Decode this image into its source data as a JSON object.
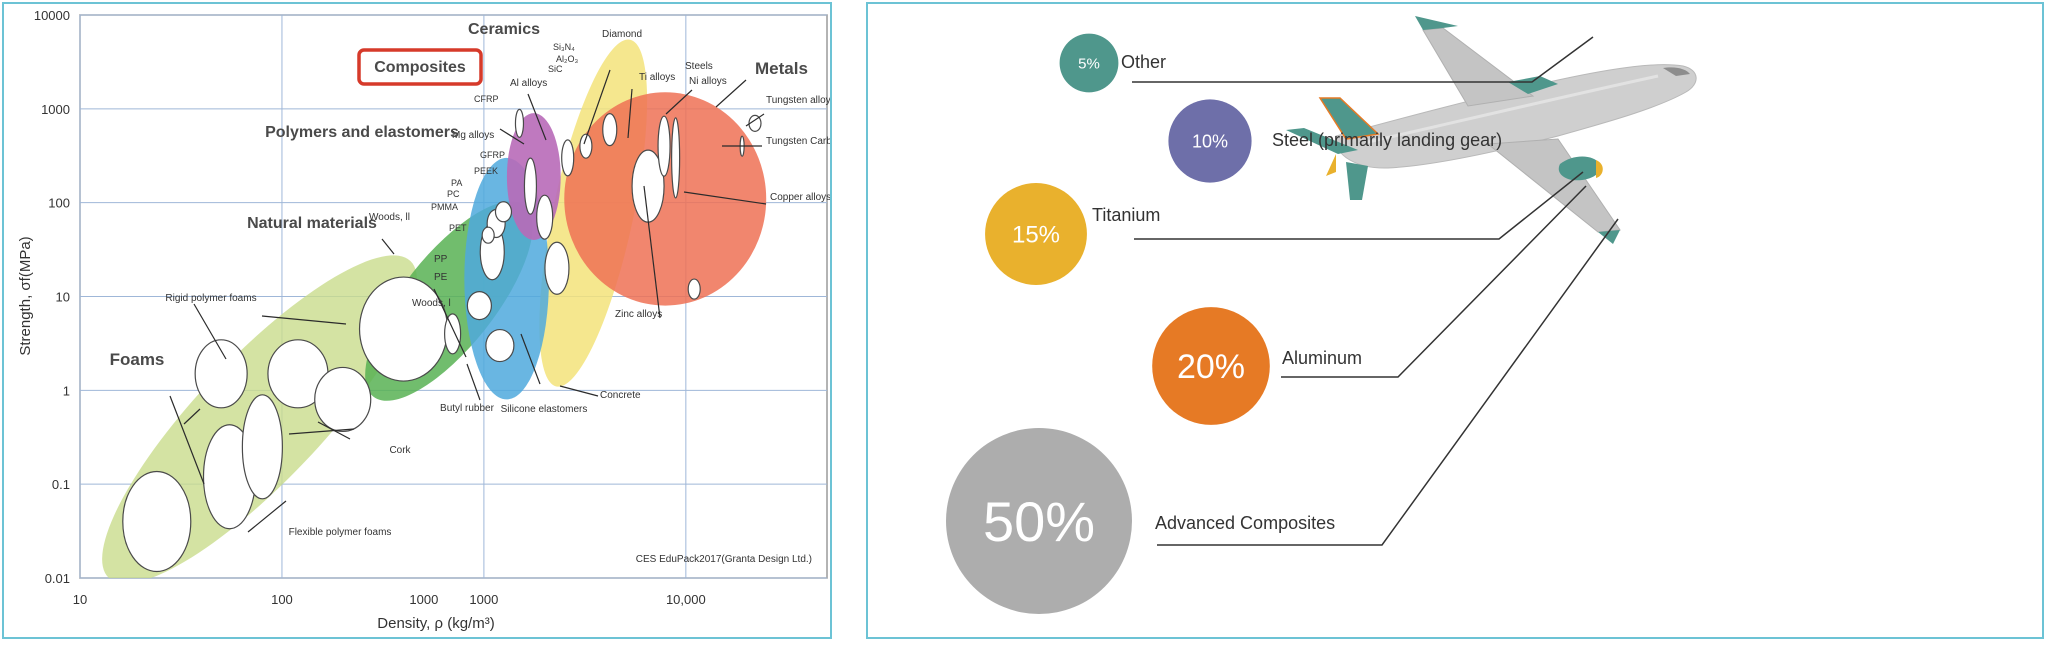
{
  "chart_data": [
    {
      "type": "scatter",
      "subtype": "material property chart (Ashby bubble chart)",
      "xlabel": "Density, ρ (kg/m³)",
      "ylabel": "Strength, σf(MPa)",
      "x_scale": "log",
      "y_scale": "log",
      "xlim": [
        10,
        50000
      ],
      "ylim": [
        0.01,
        10000
      ],
      "x_ticks": [
        "10",
        "100",
        "1000",
        "1000",
        "10,000"
      ],
      "y_ticks": [
        "10000",
        "1000",
        "100",
        "10",
        "1",
        "0.1",
        "0.01"
      ],
      "grid": true,
      "source_note": "CES EduPack2017(Granta Design Ltd.)",
      "families": [
        {
          "name": "Foams",
          "color": "#c9dc8c",
          "x_range": [
            15,
            400
          ],
          "y_range": [
            0.012,
            20
          ]
        },
        {
          "name": "Natural materials",
          "color": "#58b154",
          "x_range": [
            300,
            1500
          ],
          "y_range": [
            1,
            80
          ]
        },
        {
          "name": "Polymers and elastomers",
          "color": "#4fa9dd",
          "x_range": [
            800,
            2100
          ],
          "y_range": [
            0.8,
            300
          ]
        },
        {
          "name": "Composites",
          "color": "#b86ab8",
          "x_range": [
            1300,
            2400
          ],
          "y_range": [
            40,
            900
          ],
          "highlighted": true
        },
        {
          "name": "Ceramics",
          "color": "#f3e37a",
          "x_range": [
            2200,
            5500
          ],
          "y_range": [
            1,
            6000
          ]
        },
        {
          "name": "Metals",
          "color": "#ee7155",
          "x_range": [
            2500,
            25000
          ],
          "y_range": [
            8,
            1500
          ]
        }
      ],
      "annotations": [
        "Ceramics",
        "Diamond",
        "Si₃N₄",
        "Al₂O₃",
        "SiC",
        "Al alloys",
        "Ti alloys",
        "Steels",
        "Ni alloys",
        "Metals",
        "Tungsten alloys",
        "Tungsten Carbide",
        "Copper alloys",
        "Zinc alloys",
        "Concrete",
        "Composites",
        "CFRP",
        "Mg alloys",
        "GFRP",
        "PEEK",
        "Polymers and elastomers",
        "Natural materials",
        "Woods, ll",
        "PA",
        "PC",
        "PMMA",
        "PET",
        "PP",
        "PE",
        "Woods, l",
        "Butyl rubber",
        "Silicone elastomers",
        "Rigid polymer foams",
        "Foams",
        "Cork",
        "Flexible polymer foams"
      ]
    },
    {
      "type": "bubble",
      "categories": [
        "Other",
        "Steel (primarily landing gear)",
        "Titanium",
        "Aluminum",
        "Advanced Composites"
      ],
      "values": [
        5,
        10,
        15,
        20,
        50
      ],
      "value_labels": [
        "5%",
        "10%",
        "15%",
        "20%",
        "50%"
      ],
      "colors": [
        "#4f978c",
        "#6e6fa9",
        "#e9b12d",
        "#e67a25",
        "#adadad"
      ]
    }
  ]
}
